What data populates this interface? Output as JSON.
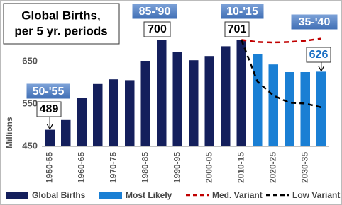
{
  "chart_data": {
    "type": "bar",
    "title": [
      "Global Births,",
      "per 5 yr. periods"
    ],
    "y_label": "Millions",
    "categories": [
      "1950-55",
      null,
      "1960-65",
      null,
      "1970-75",
      null,
      "1980-85",
      null,
      "1990-95",
      null,
      "2000-05",
      null,
      "2010-15",
      null,
      "2020-25",
      null,
      "2030-35",
      null
    ],
    "period_labels": [
      "50-'55",
      null,
      null,
      null,
      null,
      null,
      null,
      "85-'90",
      null,
      null,
      null,
      null,
      "10-'15",
      null,
      null,
      null,
      null,
      "35-'40"
    ],
    "series": [
      {
        "name": "Global Births",
        "type": "bar",
        "color": "#141f5c",
        "values": [
          489,
          512,
          565,
          597,
          608,
          606,
          650,
          700,
          673,
          653,
          663,
          686,
          701,
          null,
          null,
          null,
          null,
          null
        ],
        "value_labels": [
          "489",
          null,
          null,
          null,
          null,
          null,
          null,
          "700",
          null,
          null,
          null,
          null,
          "701",
          null,
          null,
          null,
          null,
          null
        ]
      },
      {
        "name": "Most Likely",
        "type": "bar",
        "color": "#1a7fd4",
        "values": [
          null,
          null,
          null,
          null,
          null,
          null,
          null,
          null,
          null,
          null,
          null,
          null,
          null,
          668,
          643,
          625,
          625,
          626
        ],
        "value_labels": [
          null,
          null,
          null,
          null,
          null,
          null,
          null,
          null,
          null,
          null,
          null,
          null,
          null,
          null,
          null,
          null,
          null,
          "626"
        ]
      },
      {
        "name": "Med. Variant",
        "type": "line",
        "color": "#c00000",
        "dashed": true,
        "values": [
          null,
          null,
          null,
          null,
          null,
          null,
          null,
          null,
          null,
          null,
          null,
          null,
          701,
          696,
          695,
          696,
          699,
          704
        ]
      },
      {
        "name": "Low Variant",
        "type": "line",
        "color": "#000000",
        "dashed": true,
        "values": [
          null,
          null,
          null,
          null,
          null,
          null,
          null,
          null,
          null,
          null,
          null,
          null,
          701,
          603,
          570,
          553,
          551,
          542
        ]
      }
    ],
    "ylim": [
      450,
      750
    ],
    "yticks": [
      450,
      550,
      650
    ],
    "grid": false,
    "legend": "bottom"
  }
}
